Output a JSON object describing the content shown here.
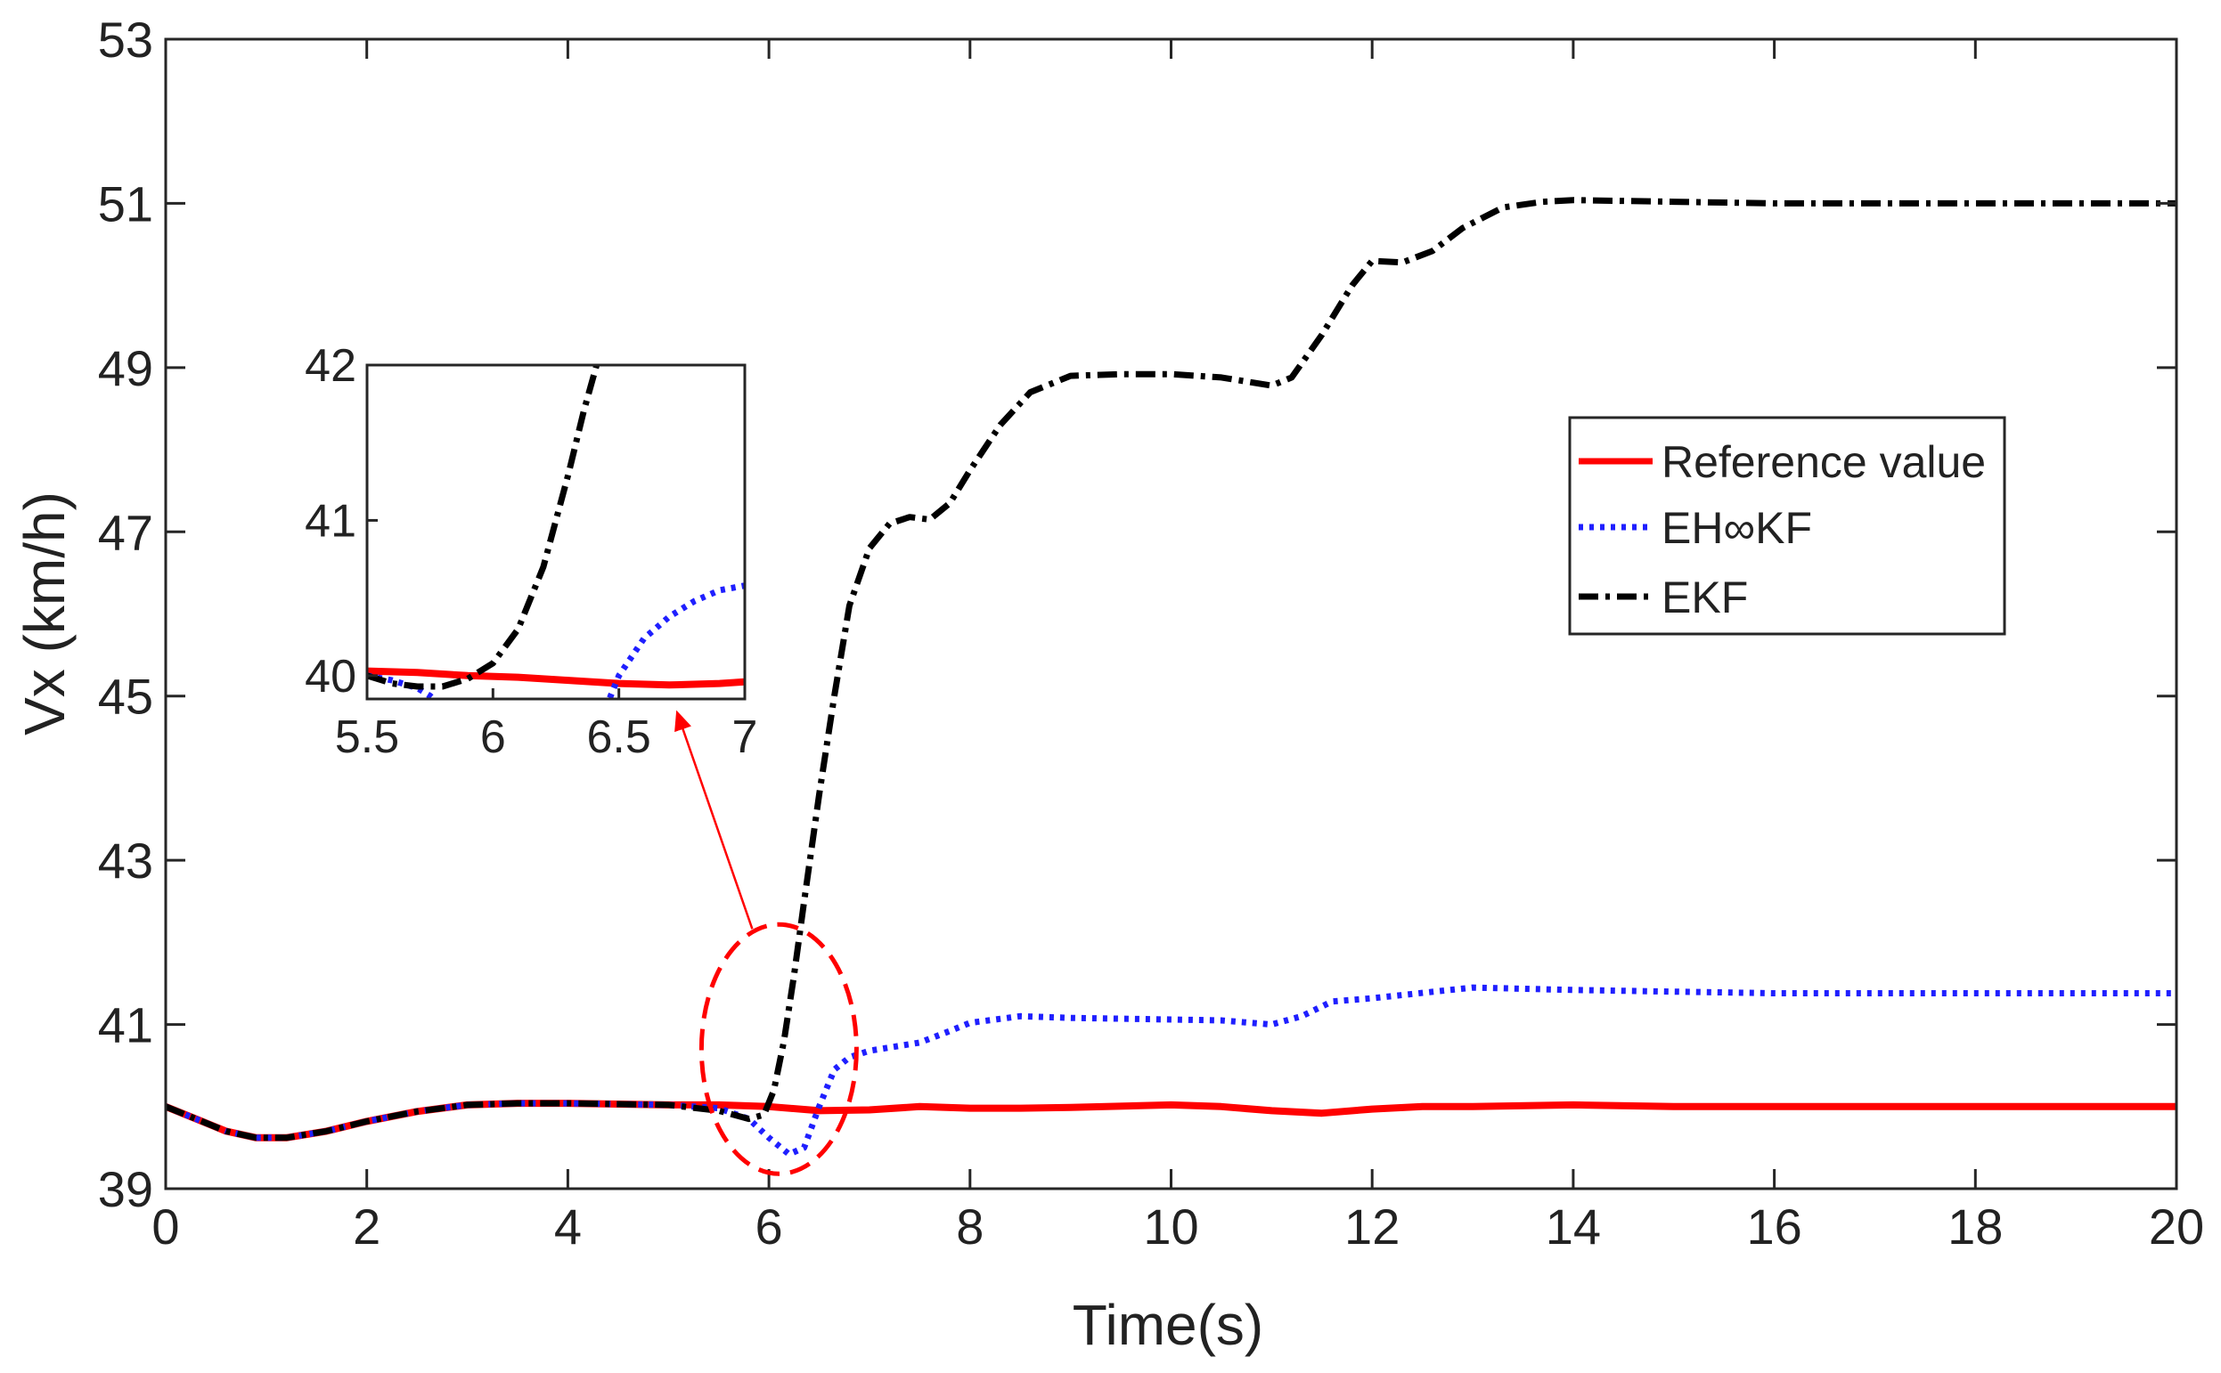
{
  "chart_data": {
    "type": "line",
    "xlabel": "Time(s)",
    "ylabel": "Vx (km/h)",
    "xlim": [
      0,
      20
    ],
    "ylim": [
      39,
      53
    ],
    "xticks": [
      0,
      2,
      4,
      6,
      8,
      10,
      12,
      14,
      16,
      18,
      20
    ],
    "yticks": [
      39,
      41,
      43,
      45,
      47,
      49,
      51,
      53
    ],
    "grid": false,
    "legend_position": "right-center",
    "series": [
      {
        "name": "Reference value",
        "color": "#ff0000",
        "style": "solid",
        "x": [
          0,
          0.3,
          0.6,
          0.9,
          1.2,
          1.6,
          2,
          2.5,
          3,
          3.5,
          4,
          4.5,
          5,
          5.5,
          6,
          6.5,
          7,
          7.5,
          8,
          8.5,
          9,
          10,
          10.5,
          11,
          11.5,
          12,
          12.5,
          13,
          14,
          15,
          16,
          17,
          18,
          19,
          20
        ],
        "y": [
          40.0,
          39.85,
          39.7,
          39.62,
          39.62,
          39.7,
          39.82,
          39.94,
          40.02,
          40.04,
          40.04,
          40.03,
          40.02,
          40.02,
          40.0,
          39.95,
          39.96,
          40.0,
          39.98,
          39.98,
          39.99,
          40.02,
          40.0,
          39.95,
          39.92,
          39.97,
          40.0,
          40.0,
          40.02,
          40.0,
          40.0,
          40.0,
          40.0,
          40.0,
          40.0
        ]
      },
      {
        "name": "EH∞KF",
        "color": "#1f1fff",
        "style": "dotted",
        "x": [
          0,
          0.3,
          0.6,
          0.9,
          1.2,
          1.6,
          2,
          2.5,
          3,
          3.5,
          4,
          4.5,
          5,
          5.5,
          5.8,
          6.0,
          6.2,
          6.35,
          6.5,
          6.65,
          6.8,
          7.0,
          7.5,
          7.8,
          8.0,
          8.5,
          9,
          10,
          10.5,
          11,
          11.3,
          11.6,
          12,
          13,
          14,
          15,
          16,
          17,
          18,
          19,
          20
        ],
        "y": [
          40.0,
          39.85,
          39.7,
          39.62,
          39.62,
          39.7,
          39.82,
          39.94,
          40.02,
          40.04,
          40.04,
          40.03,
          40.02,
          39.98,
          39.85,
          39.62,
          39.42,
          39.5,
          40.0,
          40.45,
          40.6,
          40.68,
          40.78,
          40.92,
          41.02,
          41.1,
          41.08,
          41.06,
          41.05,
          41.0,
          41.1,
          41.28,
          41.32,
          41.45,
          41.42,
          41.4,
          41.38,
          41.38,
          41.38,
          41.38,
          41.38
        ]
      },
      {
        "name": "EKF",
        "color": "#000000",
        "style": "dashdot",
        "x": [
          0,
          0.3,
          0.6,
          0.9,
          1.2,
          1.6,
          2,
          2.5,
          3,
          3.5,
          4,
          4.5,
          5,
          5.5,
          5.8,
          5.95,
          6.05,
          6.15,
          6.25,
          6.35,
          6.5,
          6.65,
          6.8,
          7.0,
          7.2,
          7.4,
          7.6,
          7.8,
          8.0,
          8.3,
          8.6,
          9,
          9.5,
          10,
          10.5,
          11,
          11.2,
          11.5,
          11.8,
          12,
          12.3,
          12.6,
          12.9,
          13.3,
          13.7,
          14,
          15,
          16,
          17,
          18,
          19,
          20
        ],
        "y": [
          40.0,
          39.85,
          39.7,
          39.62,
          39.62,
          39.7,
          39.82,
          39.94,
          40.02,
          40.04,
          40.04,
          40.03,
          40.02,
          39.95,
          39.85,
          39.9,
          40.2,
          40.8,
          41.6,
          42.5,
          43.8,
          45.0,
          46.1,
          46.8,
          47.1,
          47.18,
          47.15,
          47.35,
          47.75,
          48.3,
          48.7,
          48.9,
          48.92,
          48.92,
          48.88,
          48.78,
          48.88,
          49.4,
          50.0,
          50.3,
          50.28,
          50.42,
          50.7,
          50.95,
          51.02,
          51.04,
          51.02,
          51.0,
          51.0,
          51.0,
          51.0,
          51.0
        ]
      }
    ],
    "inset": {
      "xlim": [
        5.5,
        7
      ],
      "ylim": [
        39.85,
        42
      ],
      "xticks": [
        5.5,
        6,
        6.5,
        7
      ],
      "xtick_labels": [
        "5.5",
        "6",
        "6.5",
        "7"
      ],
      "yticks": [
        40,
        41,
        42
      ],
      "series": [
        {
          "name": "Reference value",
          "x": [
            5.5,
            5.7,
            5.9,
            6.1,
            6.3,
            6.5,
            6.7,
            6.9,
            7.0
          ],
          "y": [
            40.03,
            40.02,
            40.0,
            39.99,
            39.97,
            39.95,
            39.94,
            39.95,
            39.96
          ]
        },
        {
          "name": "EH∞KF",
          "x": [
            5.5,
            5.6,
            5.7,
            5.75,
            5.8,
            6.45,
            6.5,
            6.55,
            6.6,
            6.7,
            6.8,
            6.9,
            7.0
          ],
          "y": [
            40.0,
            39.97,
            39.92,
            39.87,
            39.8,
            39.8,
            40.0,
            40.12,
            40.24,
            40.38,
            40.48,
            40.55,
            40.58
          ]
        },
        {
          "name": "EKF",
          "x": [
            5.5,
            5.6,
            5.7,
            5.8,
            5.9,
            6.0,
            6.1,
            6.2,
            6.3,
            6.36,
            6.42
          ],
          "y": [
            40.0,
            39.95,
            39.93,
            39.93,
            39.98,
            40.08,
            40.3,
            40.7,
            41.3,
            41.7,
            42.05
          ]
        }
      ]
    },
    "annotation": {
      "type": "dashed-ellipse-with-arrow",
      "center": [
        6.1,
        40.7
      ],
      "points_to": "inset"
    }
  }
}
